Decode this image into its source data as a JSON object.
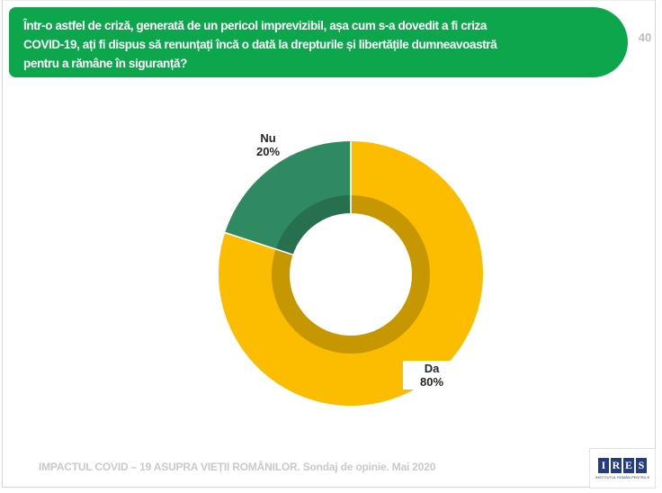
{
  "page": {
    "number": "40"
  },
  "header": {
    "bg_color": "#0DA64D",
    "question": "Într-o astfel de criză, generată de un pericol imprevizibil, așa cum s-a dovedit a fi criza COVID-19, ați fi dispus să renunțați încă o dată la drepturile și libertățile dumneavoastră pentru a rămâne în siguranță?",
    "lines": [
      "Într-o astfel de criză, generată de un pericol imprevizibil, așa cum s-a dovedit a fi criza",
      "COVID-19, ați fi dispus să renunțați încă o dată la drepturile și libertățile dumneavoastră",
      "pentru a rămâne în siguranță?"
    ]
  },
  "chart_data": {
    "type": "pie",
    "subtype": "donut",
    "categories": [
      "Da",
      "Nu"
    ],
    "values": [
      80,
      20
    ],
    "unit": "%",
    "colors": [
      "#FCBD00",
      "#2F8A62"
    ],
    "inner_colors": [
      "#C79700",
      "#26704E"
    ],
    "start_angle_deg": 0,
    "direction": "clockwise",
    "legend": "none",
    "labels": [
      {
        "name": "Da",
        "value": "80%"
      },
      {
        "name": "Nu",
        "value": "20%"
      }
    ]
  },
  "footer": {
    "source": "IMPACTUL COVID – 19 ASUPRA VIEȚII ROMÂNILOR. Sondaj de opinie. Mai 2020"
  },
  "logo": {
    "letters": [
      "I",
      "R",
      "E",
      "S"
    ],
    "tagline": "INSTITUTUL ROMÂN PENTRU EVALUARE ȘI STRATEGIE",
    "color": "#253C85"
  }
}
